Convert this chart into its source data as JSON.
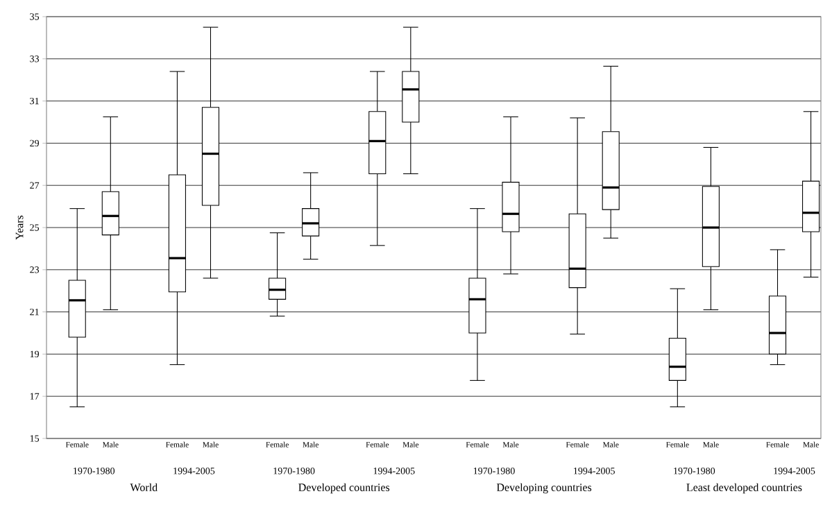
{
  "chart_data": {
    "type": "box",
    "ylabel": "Years",
    "categories": [
      "Female",
      "Male",
      "Female",
      "Male",
      "Female",
      "Male",
      "Female",
      "Male",
      "Female",
      "Male",
      "Female",
      "Male",
      "Female",
      "Male",
      "Female",
      "Male"
    ],
    "annotations": [
      "1970-1980",
      "1994-2005",
      "1970-1980",
      "1994-2005",
      "1970-1980",
      "1994-2005",
      "1970-1980",
      "1994-2005",
      "World",
      "Developed countries",
      "Developing countries",
      "Least developed countries"
    ],
    "series": [
      {
        "color": "#000000",
        "boxes": [
          {
            "low": 16.5,
            "q1": 19.8,
            "median": 21.55,
            "q3": 22.5,
            "high": 25.9
          },
          {
            "low": 21.1,
            "q1": 24.65,
            "median": 25.55,
            "q3": 26.7,
            "high": 30.25
          },
          {
            "low": 18.5,
            "q1": 21.95,
            "median": 23.55,
            "q3": 27.5,
            "high": 32.4
          },
          {
            "low": 22.6,
            "q1": 26.05,
            "median": 28.5,
            "q3": 30.7,
            "high": 34.5
          },
          {
            "low": 20.8,
            "q1": 21.6,
            "median": 22.05,
            "q3": 22.6,
            "high": 24.75
          },
          {
            "low": 23.5,
            "q1": 24.6,
            "median": 25.2,
            "q3": 25.9,
            "high": 27.6
          },
          {
            "low": 24.15,
            "q1": 27.55,
            "median": 29.1,
            "q3": 30.5,
            "high": 32.4
          },
          {
            "low": 27.55,
            "q1": 30.0,
            "median": 31.55,
            "q3": 32.4,
            "high": 34.5
          },
          {
            "low": 17.75,
            "q1": 20.0,
            "median": 21.6,
            "q3": 22.6,
            "high": 25.9
          },
          {
            "low": 22.8,
            "q1": 24.8,
            "median": 25.65,
            "q3": 27.15,
            "high": 30.25
          },
          {
            "low": 19.95,
            "q1": 22.15,
            "median": 23.05,
            "q3": 25.65,
            "high": 30.2
          },
          {
            "low": 24.5,
            "q1": 25.85,
            "median": 26.9,
            "q3": 29.55,
            "high": 32.65
          },
          {
            "low": 16.5,
            "q1": 17.75,
            "median": 18.4,
            "q3": 19.75,
            "high": 22.1
          },
          {
            "low": 21.1,
            "q1": 23.15,
            "median": 25.0,
            "q3": 26.95,
            "high": 28.8
          },
          {
            "low": 18.5,
            "q1": 19.0,
            "median": 20.0,
            "q3": 21.75,
            "high": 23.95
          },
          {
            "low": 22.65,
            "q1": 24.8,
            "median": 25.7,
            "q3": 27.2,
            "high": 30.5
          }
        ]
      }
    ],
    "ylim": [
      15,
      35
    ],
    "yticks": [
      15,
      17,
      19,
      21,
      23,
      25,
      27,
      29,
      31,
      33,
      35
    ],
    "grid": "y"
  }
}
